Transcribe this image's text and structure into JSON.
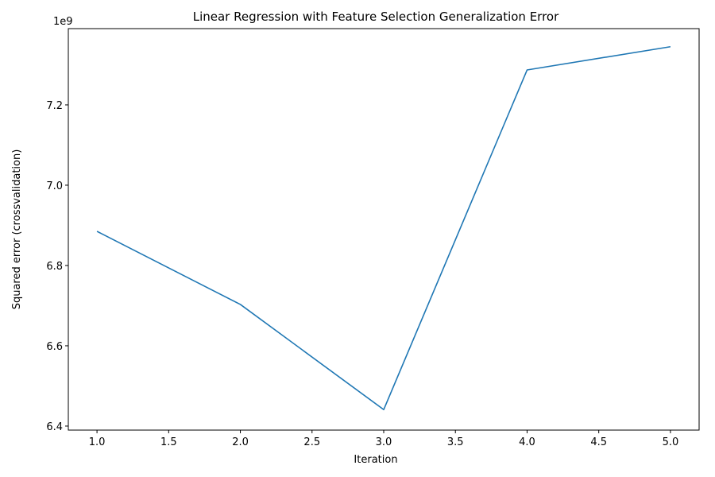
{
  "chart_data": {
    "type": "line",
    "title": "Linear Regression with Feature Selection Generalization Error",
    "xlabel": "Iteration",
    "ylabel": "Squared error (crossvalidation)",
    "y_offset_text": "1e9",
    "x": [
      1,
      2,
      3,
      4,
      5
    ],
    "series": [
      {
        "values": [
          6885000000.0,
          6703000000.0,
          6441000000.0,
          7287000000.0,
          7345000000.0
        ],
        "color": "#1f77b4"
      }
    ],
    "xlim": [
      0.8,
      5.2
    ],
    "ylim": [
      6390000000.0,
      7390000000.0
    ],
    "x_ticks": [
      1.0,
      1.5,
      2.0,
      2.5,
      3.0,
      3.5,
      4.0,
      4.5,
      5.0
    ],
    "x_tick_labels": [
      "1.0",
      "1.5",
      "2.0",
      "2.5",
      "3.0",
      "3.5",
      "4.0",
      "4.5",
      "5.0"
    ],
    "y_ticks": [
      6400000000.0,
      6600000000.0,
      6800000000.0,
      7000000000.0,
      7200000000.0
    ],
    "y_tick_labels": [
      "6.4",
      "6.6",
      "6.8",
      "7.0",
      "7.2"
    ],
    "grid": false,
    "legend": "none"
  }
}
